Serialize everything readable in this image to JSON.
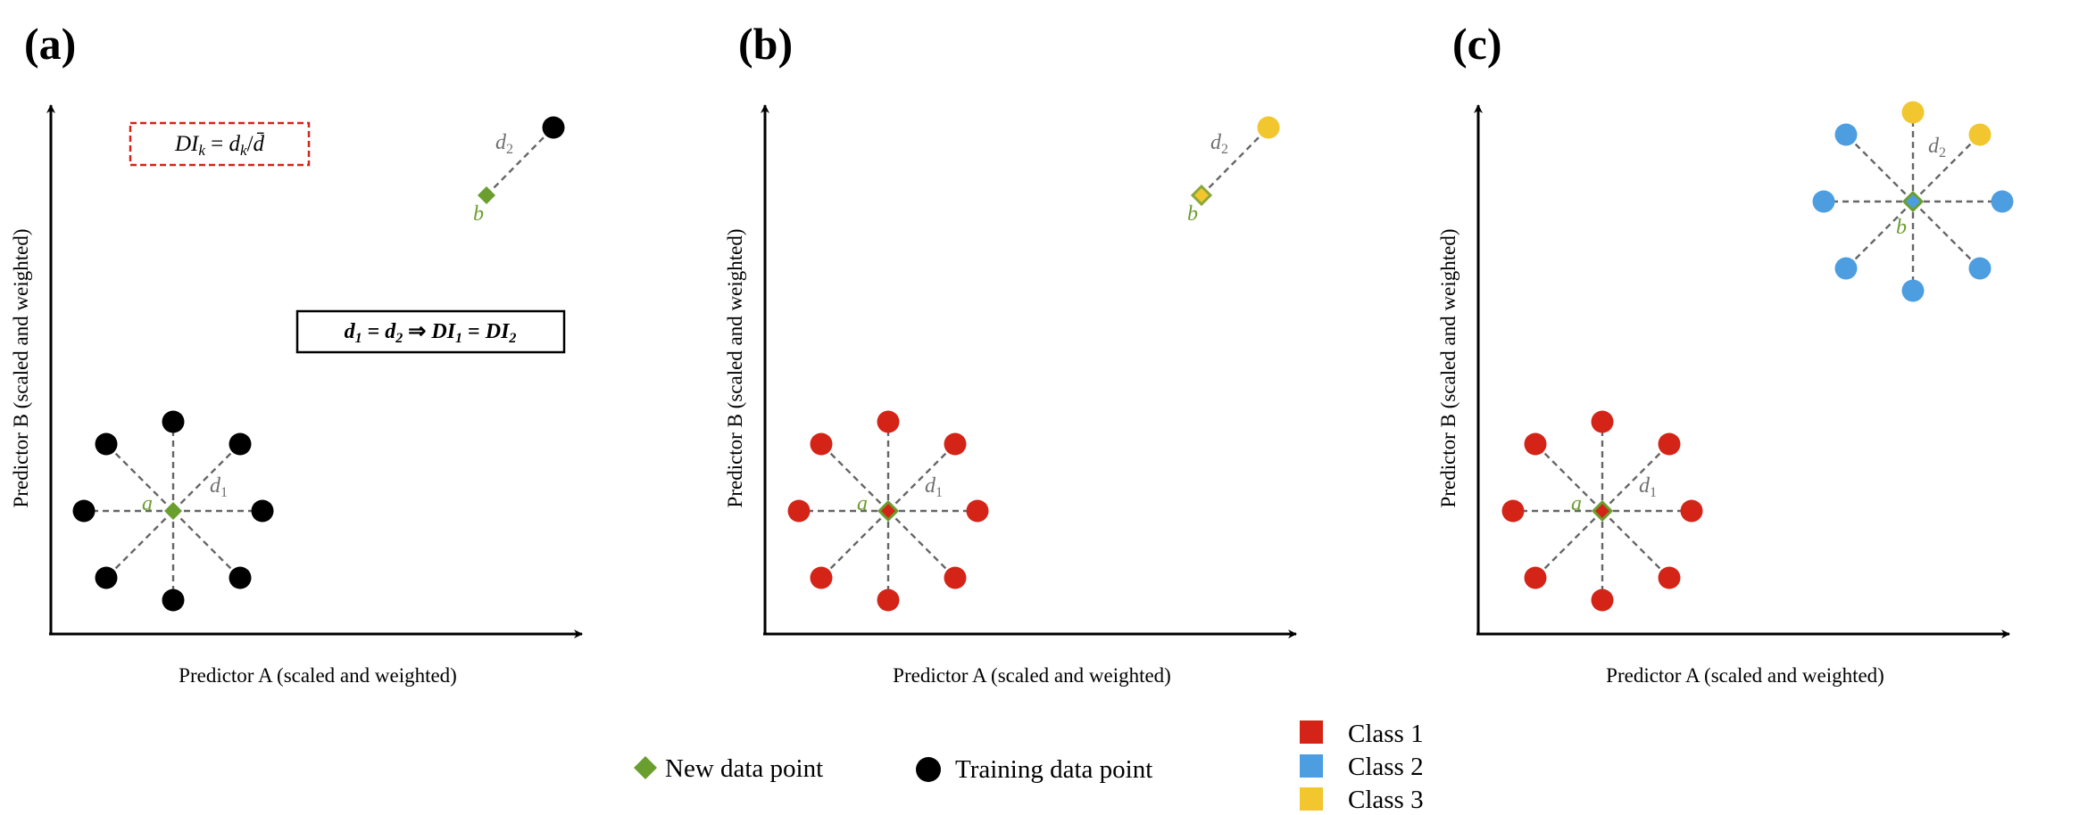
{
  "panels": [
    {
      "label": "(a)",
      "x_axis_title": "Predictor A (scaled and weighted)",
      "y_axis_title": "Predictor B (scaled and weighted)",
      "point_a_label": "a",
      "point_b_label": "b",
      "distance_1_label": "d1",
      "distance_2_label": "d2",
      "formula_box": "DIk = dk/d̄",
      "equality_box": "d1 = d2 ⇒ DI1 = DI2"
    },
    {
      "label": "(b)",
      "x_axis_title": "Predictor A (scaled and weighted)",
      "y_axis_title": "Predictor B (scaled and weighted)",
      "point_a_label": "a",
      "point_b_label": "b",
      "distance_1_label": "d1",
      "distance_2_label": "d2"
    },
    {
      "label": "(c)",
      "x_axis_title": "Predictor A (scaled and weighted)",
      "y_axis_title": "Predictor B (scaled and weighted)",
      "point_a_label": "a",
      "point_b_label": "b",
      "distance_1_label": "d1",
      "distance_2_label": "d2"
    }
  ],
  "legend": {
    "new_point": "New data point",
    "training_point": "Training data point",
    "classes": [
      "Class 1",
      "Class 2",
      "Class 3"
    ]
  },
  "colors": {
    "new_point": "#6a9e2e",
    "training_point": "#000000",
    "class_1": "#d42418",
    "class_2": "#4d9ee0",
    "class_3": "#f2c62e",
    "distance_line": "#666666",
    "distance_label": "#6e6e6e",
    "formula_border": "#d42418"
  }
}
